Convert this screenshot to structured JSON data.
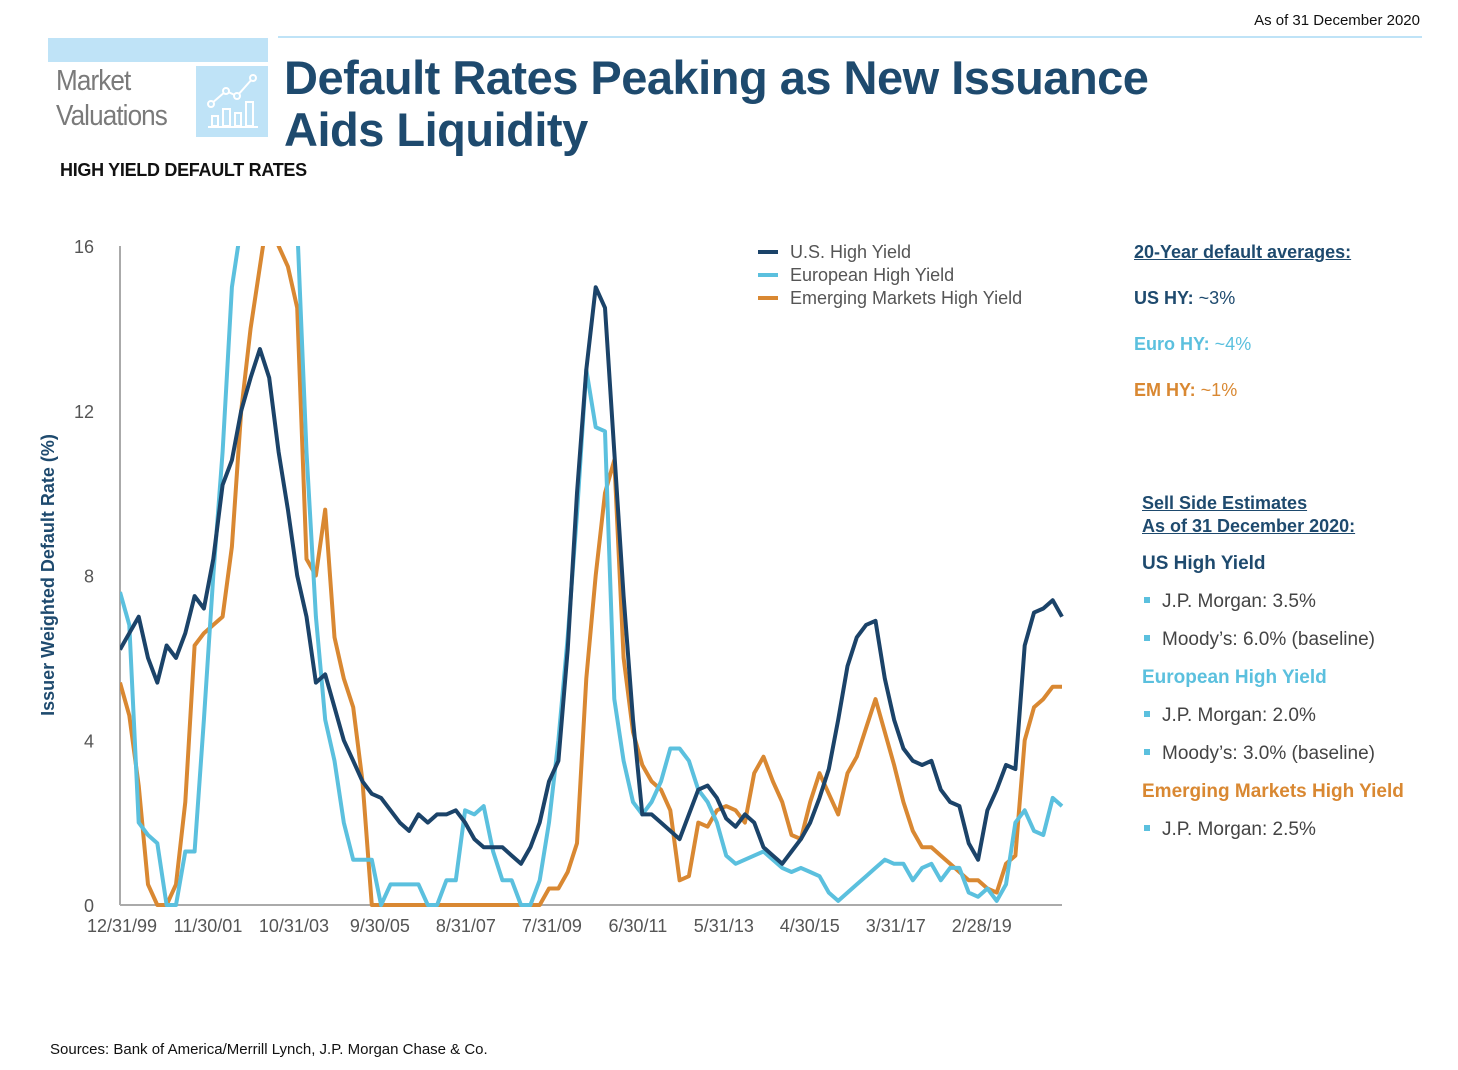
{
  "header": {
    "as_of": "As of 31 December 2020",
    "section_line1": "Market",
    "section_line2": "Valuations",
    "section_icon": "chart-growth-icon",
    "title_line1": "Default Rates Peaking as New Issuance",
    "title_line2": "Aids Liquidity",
    "subtitle": "HIGH YIELD DEFAULT RATES"
  },
  "colors": {
    "us": "#1b4369",
    "euro": "#5bc0de",
    "em": "#d98832",
    "title": "#1e4a6e",
    "accent_light": "#bfe3f7"
  },
  "chart_data": {
    "type": "line",
    "title": "HIGH YIELD DEFAULT RATES",
    "xlabel": "",
    "ylabel": "Issuer Weighted Default Rate (%)",
    "ylim": [
      0,
      16
    ],
    "yticks": [
      "0",
      "4",
      "8",
      "12",
      "16"
    ],
    "ytick_values": [
      0,
      4,
      8,
      12,
      16
    ],
    "xlim_months": [
      0,
      252
    ],
    "xticks": [
      "12/31/99",
      "11/30/01",
      "10/31/03",
      "9/30/05",
      "8/31/07",
      "7/31/09",
      "6/30/11",
      "5/31/13",
      "4/30/15",
      "3/31/17",
      "2/28/19"
    ],
    "xtick_months": [
      0,
      23,
      46,
      69,
      92,
      115,
      138,
      161,
      184,
      207,
      230
    ],
    "grid": false,
    "legend_position": "top-right",
    "x_months": [
      0,
      3,
      6,
      9,
      12,
      15,
      18,
      21,
      24,
      27,
      30,
      33,
      36,
      39,
      42,
      45,
      48,
      51,
      54,
      57,
      60,
      63,
      66,
      69,
      72,
      75,
      78,
      81,
      84,
      87,
      90,
      93,
      96,
      99,
      102,
      105,
      108,
      111,
      114,
      117,
      120,
      123,
      126,
      129,
      132,
      135,
      138,
      141,
      144,
      147,
      150,
      153,
      156,
      159,
      162,
      165,
      168,
      171,
      174,
      177,
      180,
      183,
      186,
      189,
      192,
      195,
      198,
      201,
      204,
      207,
      210,
      213,
      216,
      219,
      222,
      225,
      228,
      231,
      234,
      237,
      240,
      243,
      246,
      249,
      251
    ],
    "series": [
      {
        "name": "U.S. High Yield",
        "color": "#1b4369",
        "values": [
          6.2,
          6.6,
          7.0,
          6.0,
          5.4,
          6.3,
          6.0,
          6.6,
          7.5,
          7.2,
          8.4,
          10.2,
          10.8,
          12.0,
          12.8,
          13.5,
          12.8,
          11.0,
          9.6,
          8.0,
          7.0,
          5.4,
          5.6,
          4.8,
          4.0,
          3.5,
          3.0,
          2.7,
          2.6,
          2.3,
          2.0,
          1.8,
          2.2,
          2.0,
          2.2,
          2.2,
          2.3,
          2.0,
          1.6,
          1.4,
          1.4,
          1.4,
          1.2,
          1.0,
          1.4,
          2.0,
          3.0,
          3.5,
          6.2,
          10.0,
          13.0,
          15.0,
          14.5,
          11.0,
          7.5,
          4.5,
          2.2,
          2.2,
          2.0,
          1.8,
          1.6,
          2.2,
          2.8,
          2.9,
          2.6,
          2.1,
          1.9,
          2.2,
          2.0,
          1.4,
          1.2,
          1.0,
          1.3,
          1.6,
          2.0,
          2.6,
          3.3,
          4.5,
          5.8,
          6.5,
          6.8,
          6.9,
          5.5,
          4.5,
          3.8,
          3.5,
          3.4,
          3.5,
          2.8,
          2.5,
          2.4,
          1.5,
          1.1,
          2.3,
          2.8,
          3.4,
          3.3,
          6.3,
          7.1,
          7.2,
          7.4,
          7.0
        ]
      },
      {
        "name": "European High Yield",
        "color": "#5bc0de",
        "values": [
          7.6,
          6.8,
          2.0,
          1.7,
          1.5,
          0.0,
          0.0,
          1.3,
          1.3,
          4.5,
          8.0,
          11.0,
          15.0,
          16.5,
          18.0,
          19.0,
          19.0,
          18.0,
          17.5,
          16.5,
          11.0,
          7.0,
          4.5,
          3.5,
          2.0,
          1.1,
          1.1,
          1.1,
          0.0,
          0.5,
          0.5,
          0.5,
          0.5,
          0.0,
          0.0,
          0.6,
          0.6,
          2.3,
          2.2,
          2.4,
          1.3,
          0.6,
          0.6,
          0.0,
          0.0,
          0.6,
          2.0,
          4.0,
          6.5,
          9.5,
          13.0,
          11.6,
          11.5,
          5.0,
          3.5,
          2.5,
          2.2,
          2.5,
          3.0,
          3.8,
          3.8,
          3.5,
          2.8,
          2.5,
          2.0,
          1.2,
          1.0,
          1.1,
          1.2,
          1.3,
          1.1,
          0.9,
          0.8,
          0.9,
          0.8,
          0.7,
          0.3,
          0.1,
          0.3,
          0.5,
          0.7,
          0.9,
          1.1,
          1.0,
          1.0,
          0.6,
          0.9,
          1.0,
          0.6,
          0.9,
          0.9,
          0.3,
          0.2,
          0.4,
          0.1,
          0.5,
          2.0,
          2.3,
          1.8,
          1.7,
          2.6,
          2.4
        ]
      },
      {
        "name": "Emerging Markets High Yield",
        "color": "#d98832",
        "values": [
          5.4,
          4.6,
          2.9,
          0.5,
          0.0,
          0.0,
          0.5,
          2.5,
          6.3,
          6.6,
          6.8,
          7.0,
          8.7,
          12.0,
          14.0,
          15.5,
          17.0,
          16.0,
          15.5,
          14.5,
          8.4,
          8.0,
          9.6,
          6.5,
          5.5,
          4.8,
          3.0,
          0.0,
          0.0,
          0.0,
          0.0,
          0.0,
          0.0,
          0.0,
          0.0,
          0.0,
          0.0,
          0.0,
          0.0,
          0.0,
          0.0,
          0.0,
          0.0,
          0.0,
          0.0,
          0.0,
          0.4,
          0.4,
          0.8,
          1.5,
          5.5,
          8.0,
          10.0,
          10.8,
          6.0,
          4.2,
          3.4,
          3.0,
          2.8,
          2.3,
          0.6,
          0.7,
          2.0,
          1.9,
          2.3,
          2.4,
          2.3,
          2.0,
          3.2,
          3.6,
          3.0,
          2.5,
          1.7,
          1.6,
          2.5,
          3.2,
          2.7,
          2.2,
          3.2,
          3.6,
          4.3,
          5.0,
          4.2,
          3.4,
          2.5,
          1.8,
          1.4,
          1.4,
          1.2,
          1.0,
          0.8,
          0.6,
          0.6,
          0.4,
          0.3,
          1.0,
          1.2,
          4.0,
          4.8,
          5.0,
          5.3,
          5.3
        ]
      }
    ]
  },
  "legend": [
    {
      "label": "U.S. High Yield",
      "color": "#1b4369"
    },
    {
      "label": "European High Yield",
      "color": "#5bc0de"
    },
    {
      "label": "Emerging Markets High Yield",
      "color": "#d98832"
    }
  ],
  "averages": {
    "heading": "20-Year default averages:",
    "items": [
      {
        "label": "US HY:",
        "value": "~3%",
        "color": "#1e4a6e"
      },
      {
        "label": "Euro HY:",
        "value": "~4%",
        "color": "#5bc0de"
      },
      {
        "label": "EM HY:",
        "value": "~1%",
        "color": "#d98832"
      }
    ]
  },
  "sell_side": {
    "heading_line1": "Sell Side Estimates",
    "heading_line2": "As of 31 December 2020:",
    "groups": [
      {
        "title": "US High Yield",
        "color": "#1e4a6e",
        "items": [
          "J.P. Morgan: 3.5%",
          "Moody’s: 6.0% (baseline)"
        ]
      },
      {
        "title": "European High Yield",
        "color": "#5bc0de",
        "items": [
          "J.P. Morgan: 2.0%",
          "Moody’s: 3.0% (baseline)"
        ]
      },
      {
        "title": "Emerging Markets High Yield",
        "color": "#d98832",
        "items": [
          "J.P. Morgan: 2.5%"
        ]
      }
    ]
  },
  "footer": {
    "sources": "Sources: Bank of America/Merrill Lynch, J.P. Morgan Chase & Co."
  }
}
